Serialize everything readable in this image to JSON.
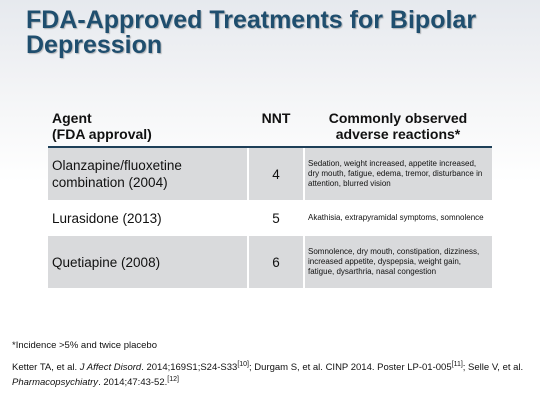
{
  "slide": {
    "title": "FDA-Approved Treatments for Bipolar Depression"
  },
  "table": {
    "headers": {
      "agent_line1": "Agent",
      "agent_line2": "(FDA approval)",
      "nnt": "NNT",
      "adverse_line1": "Commonly observed",
      "adverse_line2": "adverse reactions*"
    },
    "rows": [
      {
        "agent": "Olanzapine/fluoxetine combination (2004)",
        "nnt": "4",
        "adverse": "Sedation, weight increased, appetite increased, dry mouth, fatigue, edema, tremor, disturbance in attention, blurred vision"
      },
      {
        "agent": "Lurasidone (2013)",
        "nnt": "5",
        "adverse": "Akathisia, extrapyramidal symptoms, somnolence"
      },
      {
        "agent": "Quetiapine (2008)",
        "nnt": "6",
        "adverse": "Somnolence, dry mouth, constipation, dizziness, increased appetite, dyspepsia, weight gain, fatigue, dysarthria, nasal congestion"
      }
    ]
  },
  "footnote": "*Incidence >5% and twice placebo",
  "references": {
    "r1_authors": "Ketter TA, et al. ",
    "r1_journal": "J Affect Disord",
    "r1_details": ". 2014;169S1;S24-S33",
    "r1_num": "[10]",
    "r2_text": "; Durgam S, et al. CINP 2014. Poster LP-01-005",
    "r2_num": "[11]",
    "r3_authors": "; Selle V, et al. ",
    "r3_journal": "Pharmacopsychiatry",
    "r3_details": ". 2014;47:43-52.",
    "r3_num": "[12]"
  }
}
